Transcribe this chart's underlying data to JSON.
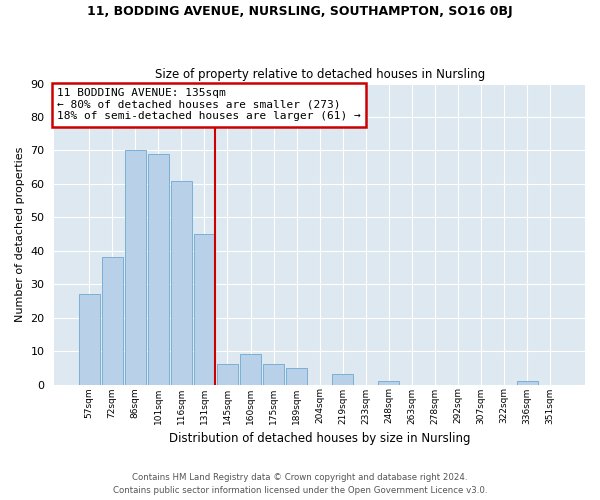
{
  "title1": "11, BODDING AVENUE, NURSLING, SOUTHAMPTON, SO16 0BJ",
  "title2": "Size of property relative to detached houses in Nursling",
  "xlabel": "Distribution of detached houses by size in Nursling",
  "ylabel": "Number of detached properties",
  "categories": [
    "57sqm",
    "72sqm",
    "86sqm",
    "101sqm",
    "116sqm",
    "131sqm",
    "145sqm",
    "160sqm",
    "175sqm",
    "189sqm",
    "204sqm",
    "219sqm",
    "233sqm",
    "248sqm",
    "263sqm",
    "278sqm",
    "292sqm",
    "307sqm",
    "322sqm",
    "336sqm",
    "351sqm"
  ],
  "values": [
    27,
    38,
    70,
    69,
    61,
    45,
    6,
    9,
    6,
    5,
    0,
    3,
    0,
    1,
    0,
    0,
    0,
    0,
    0,
    1,
    0
  ],
  "bar_color": "#b8d0e8",
  "bar_edge_color": "#7aafd4",
  "vline_x_idx": 5,
  "vline_color": "#cc0000",
  "annotation_line1": "11 BODDING AVENUE: 135sqm",
  "annotation_line2": "← 80% of detached houses are smaller (273)",
  "annotation_line3": "18% of semi-detached houses are larger (61) →",
  "annotation_box_color": "#cc0000",
  "ylim": [
    0,
    90
  ],
  "yticks": [
    0,
    10,
    20,
    30,
    40,
    50,
    60,
    70,
    80,
    90
  ],
  "footer1": "Contains HM Land Registry data © Crown copyright and database right 2024.",
  "footer2": "Contains public sector information licensed under the Open Government Licence v3.0.",
  "bg_color": "#ffffff",
  "plot_bg_color": "#dde8f0"
}
